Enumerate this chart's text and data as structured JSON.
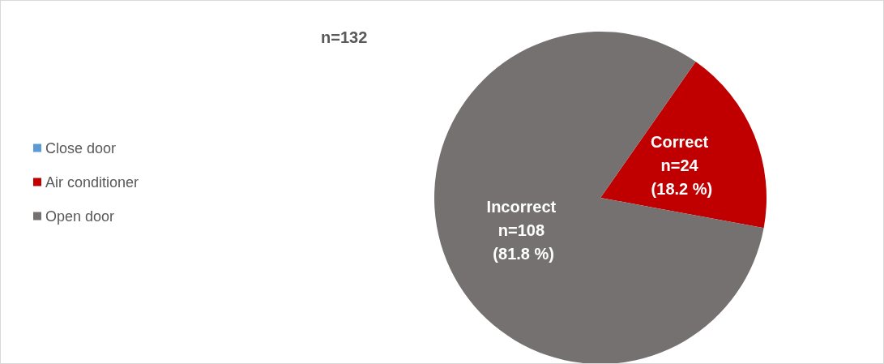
{
  "chart_data": {
    "type": "pie",
    "title": "n=132",
    "categories": [
      "Close door",
      "Air conditioner",
      "Open door"
    ],
    "values": [
      0,
      24,
      108
    ],
    "colors": [
      "#5b9bd5",
      "#c00000",
      "#767171"
    ],
    "value_labels": [
      null,
      "Correct\nn=24\n (18.2 %)",
      "Incorrect\nn=108\n (81.8 %)"
    ],
    "legend": "left"
  }
}
